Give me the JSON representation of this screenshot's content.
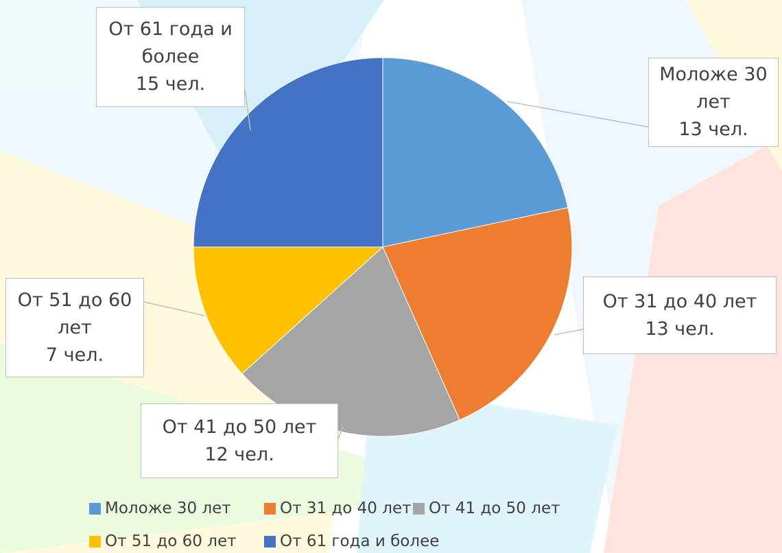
{
  "chart_data": {
    "type": "pie",
    "categories": [
      "Моложе 30 лет",
      "От 31 до 40 лет",
      "От 41 до 50 лет",
      "От 51 до 60 лет",
      "От 61 года и более"
    ],
    "values": [
      13,
      13,
      12,
      7,
      15
    ],
    "value_labels": [
      "13 чел.",
      "13 чел.",
      "12 чел.",
      "7 чел.",
      "15 чел."
    ],
    "colors": [
      "#5b9bd5",
      "#ed7d31",
      "#a5a5a5",
      "#ffc000",
      "#4472c4"
    ],
    "legend": "bottom"
  }
}
